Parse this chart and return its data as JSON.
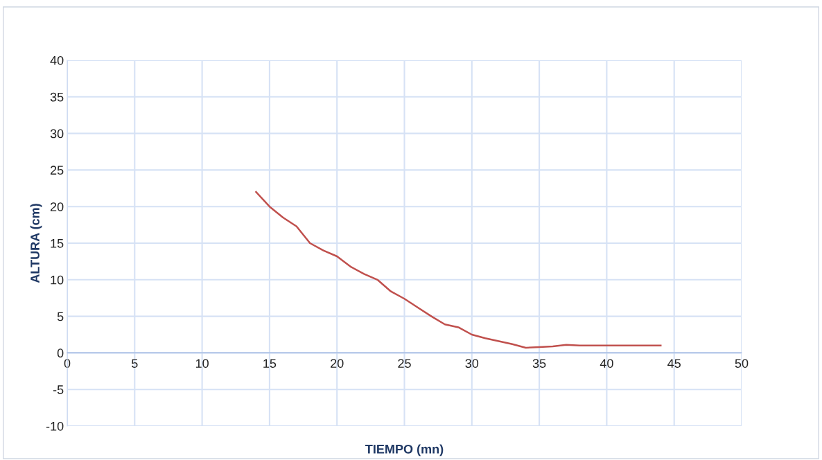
{
  "chart_data": {
    "type": "line",
    "xlabel": "TIEMPO (mn)",
    "ylabel": "ALTURA (cm)",
    "x": [
      14,
      15,
      16,
      17,
      18,
      19,
      20,
      21,
      22,
      23,
      24,
      25,
      26,
      27,
      28,
      29,
      30,
      31,
      32,
      33,
      34,
      35,
      36,
      37,
      38,
      40,
      42,
      44
    ],
    "series": [
      {
        "color": "#c0504d",
        "values": [
          22,
          20,
          18.5,
          17.3,
          15,
          14,
          13.2,
          11.8,
          10.8,
          10,
          8.4,
          7.4,
          6.2,
          5,
          3.9,
          3.5,
          2.5,
          2,
          1.6,
          1.2,
          0.7,
          0.8,
          0.9,
          1.1,
          1,
          1,
          1,
          1
        ]
      }
    ],
    "xlim": [
      0,
      50
    ],
    "xticks": [
      0,
      5,
      10,
      15,
      20,
      25,
      30,
      35,
      40,
      45,
      50
    ],
    "ylim": [
      -10,
      40
    ],
    "yticks": [
      -10,
      -5,
      0,
      5,
      10,
      15,
      20,
      25,
      30,
      35,
      40
    ],
    "grid": true,
    "marker": "none",
    "line_style": "solid"
  }
}
